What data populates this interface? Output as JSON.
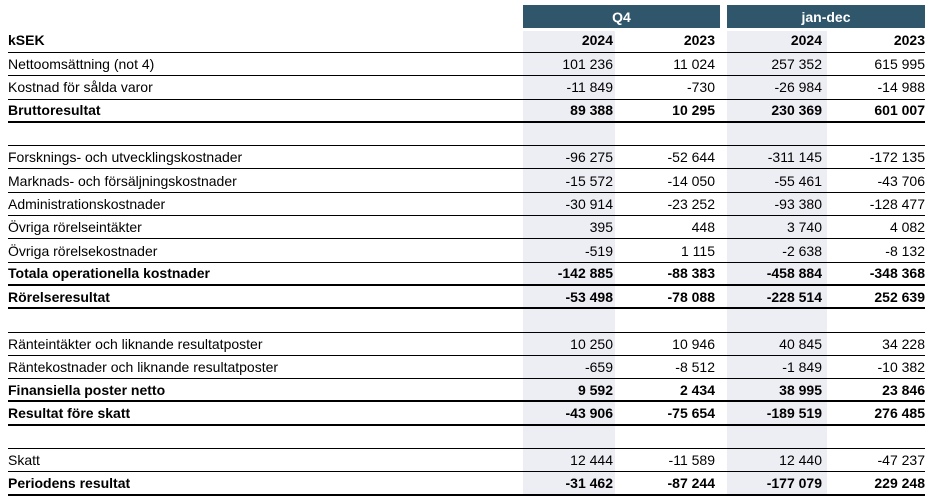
{
  "colors": {
    "header_bar": "#30566C",
    "header_bar_text": "#FFFFFF",
    "column_stripe": "#EDEDF4",
    "border": "#000000",
    "text": "#000000"
  },
  "table": {
    "unit_label": "kSEK",
    "column_groups": [
      {
        "label": "Q4"
      },
      {
        "label": "jan-dec"
      }
    ],
    "year_headers": [
      "2024",
      "2023",
      "2024",
      "2023"
    ],
    "rows": [
      {
        "label": "Nettoomsättning (not 4)",
        "values": [
          "101 236",
          "11 024",
          "257 352",
          "615 995"
        ],
        "style": "normal"
      },
      {
        "label": "Kostnad för sålda varor",
        "values": [
          "-11 849",
          "-730",
          "-26 984",
          "-14 988"
        ],
        "style": "normal"
      },
      {
        "label": "Bruttoresultat",
        "values": [
          "89 388",
          "10 295",
          "230 369",
          "601 007"
        ],
        "style": "bold"
      },
      {
        "label": "",
        "values": [
          "",
          "",
          "",
          ""
        ],
        "style": "gap"
      },
      {
        "label": "Forsknings- och utvecklingskostnader",
        "values": [
          "-96 275",
          "-52 644",
          "-311 145",
          "-172 135"
        ],
        "style": "normal"
      },
      {
        "label": "Marknads- och försäljningskostnader",
        "values": [
          "-15 572",
          "-14 050",
          "-55 461",
          "-43 706"
        ],
        "style": "normal"
      },
      {
        "label": "Administrationskostnader",
        "values": [
          "-30 914",
          "-23 252",
          "-93 380",
          "-128 477"
        ],
        "style": "normal"
      },
      {
        "label": "Övriga rörelseintäkter",
        "values": [
          "395",
          "448",
          "3 740",
          "4 082"
        ],
        "style": "normal"
      },
      {
        "label": "Övriga rörelsekostnader",
        "values": [
          "-519",
          "1 115",
          "-2 638",
          "-8 132"
        ],
        "style": "normal"
      },
      {
        "label": "Totala operationella kostnader",
        "values": [
          "-142 885",
          "-88 383",
          "-458 884",
          "-348 368"
        ],
        "style": "bold"
      },
      {
        "label": "Rörelseresultat",
        "values": [
          "-53 498",
          "-78 088",
          "-228 514",
          "252 639"
        ],
        "style": "bold"
      },
      {
        "label": "",
        "values": [
          "",
          "",
          "",
          ""
        ],
        "style": "gap"
      },
      {
        "label": "Ränteintäkter och liknande resultatposter",
        "values": [
          "10 250",
          "10 946",
          "40 845",
          "34 228"
        ],
        "style": "normal"
      },
      {
        "label": "Räntekostnader och liknande resultatposter",
        "values": [
          "-659",
          "-8 512",
          "-1 849",
          "-10 382"
        ],
        "style": "normal"
      },
      {
        "label": "Finansiella poster netto",
        "values": [
          "9 592",
          "2 434",
          "38 995",
          "23 846"
        ],
        "style": "bold"
      },
      {
        "label": "Resultat före skatt",
        "values": [
          "-43 906",
          "-75 654",
          "-189 519",
          "276 485"
        ],
        "style": "bold"
      },
      {
        "label": "",
        "values": [
          "",
          "",
          "",
          ""
        ],
        "style": "gap"
      },
      {
        "label": "Skatt",
        "values": [
          "12 444",
          "-11 589",
          "12 440",
          "-47 237"
        ],
        "style": "normal"
      },
      {
        "label": "Periodens resultat",
        "values": [
          "-31 462",
          "-87 244",
          "-177 079",
          "229 248"
        ],
        "style": "bold"
      }
    ]
  }
}
